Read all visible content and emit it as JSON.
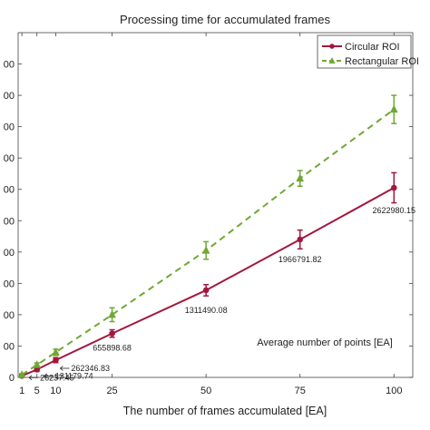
{
  "chart_data": {
    "type": "line",
    "title": "Processing time for accumulated frames",
    "xlabel": "The number of frames accumulated [EA]",
    "ylabel": "",
    "x": [
      1,
      5,
      10,
      25,
      50,
      75,
      100
    ],
    "x_ticks": [
      "1",
      "5",
      "10",
      "25",
      "50",
      "75",
      "100"
    ],
    "y_ticks": [
      "0",
      "00",
      "00",
      "00",
      "00",
      "00",
      "00",
      "00",
      "00",
      "00",
      "00"
    ],
    "ylim": [
      0,
      1100
    ],
    "grid": false,
    "legend_position": "top-right",
    "series": [
      {
        "name": "Circular ROI",
        "color": "#a3173f",
        "style": "solid",
        "marker": "circle",
        "values": [
          5,
          25,
          55,
          140,
          278,
          440,
          605
        ],
        "error": [
          4,
          6,
          8,
          12,
          18,
          30,
          48
        ]
      },
      {
        "name": "Rectangular ROI",
        "color": "#6fa832",
        "style": "dashed",
        "marker": "triangle",
        "values": [
          8,
          40,
          80,
          200,
          405,
          635,
          855
        ],
        "error": [
          4,
          6,
          10,
          22,
          28,
          25,
          45
        ]
      }
    ],
    "annotations": {
      "header": "Average number of points [EA]",
      "labels": [
        "26237.45",
        "131179.74",
        "262346.83",
        "655898.68",
        "1311490.08",
        "1966791.82",
        "2622980.15"
      ]
    }
  }
}
